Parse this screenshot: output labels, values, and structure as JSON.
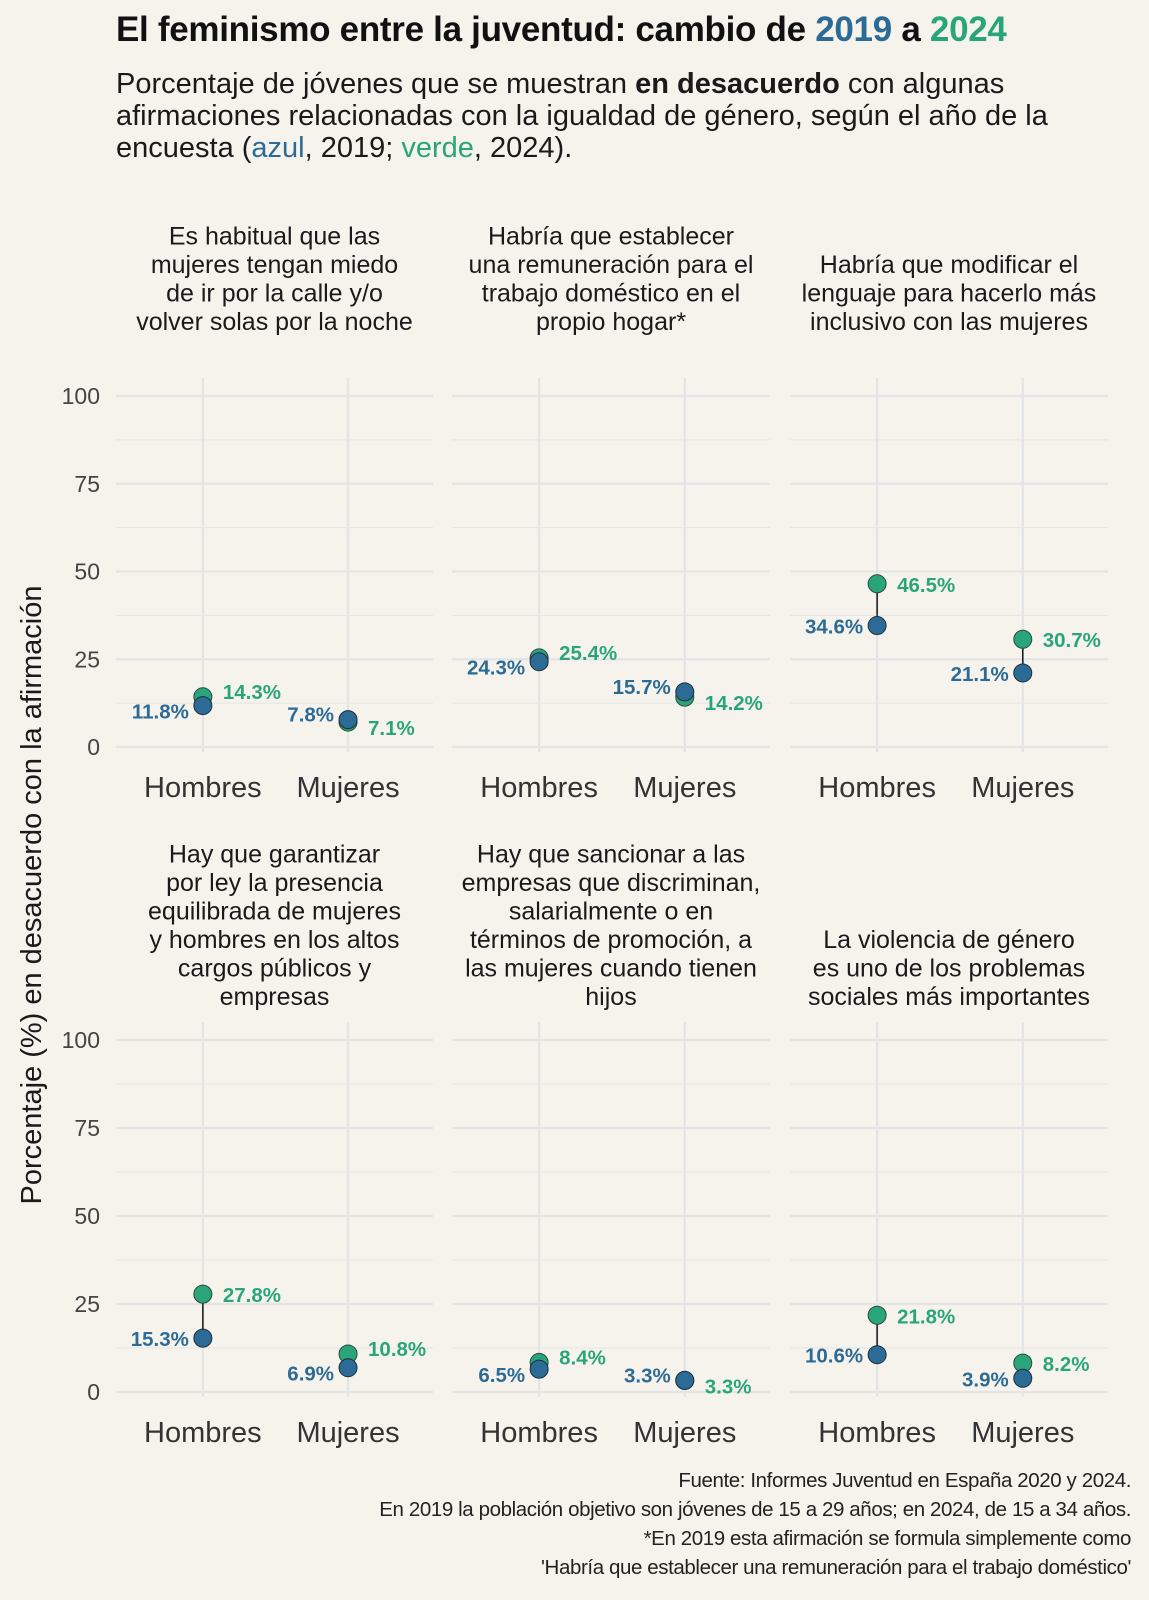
{
  "title": {
    "prefix": "El feminismo entre la juventud: cambio de ",
    "year_2019": "2019",
    "connector": " a ",
    "year_2024": "2024"
  },
  "subtitle": {
    "part1": "Porcentaje de jóvenes que se muestran ",
    "emphasis": "en desacuerdo",
    "part2": " con algunas afirmaciones relacionadas con la igualdad de género, según el año de la encuesta (",
    "blue_word": "azul",
    "part3": ", 2019; ",
    "green_word": "verde",
    "part4": ", 2024)."
  },
  "caption": [
    "Fuente: Informes Juventud en España 2020 y 2024.",
    "En 2019 la población objetivo son jóvenes de 15 a 29 años; en 2024, de 15 a 34 años.",
    "*En 2019 esta afirmación se formula simplemente como",
    "'Habría que establecer una remuneración para el trabajo doméstico'"
  ],
  "colors": {
    "year_2019": "#2c6b96",
    "year_2024": "#2aa57a",
    "background": "#f6f3ed",
    "grid": "#e4e4e4"
  },
  "chart_data": {
    "type": "scatter",
    "subtype": "dumbbell small multiples",
    "ylabel": "Porcentaje (%) en desacuerdo con la afirmación",
    "ylim": [
      0,
      100
    ],
    "yticks": [
      0,
      25,
      50,
      75,
      100
    ],
    "categories": [
      "Hombres",
      "Mujeres"
    ],
    "grid": true,
    "panels": [
      {
        "label": "Es habitual que las mujeres tengan miedo de ir por la calle y/o volver solas por la noche",
        "label_lines": [
          "Es habitual que las",
          "mujeres tengan miedo",
          "de ir por la calle y/o",
          "volver solas por la noche"
        ],
        "series": [
          {
            "name": "2019",
            "values": [
              11.8,
              7.8
            ],
            "labels": [
              "11.8%",
              "7.8%"
            ]
          },
          {
            "name": "2024",
            "values": [
              14.3,
              7.1
            ],
            "labels": [
              "14.3%",
              "7.1%"
            ]
          }
        ]
      },
      {
        "label": "Habría que establecer una remuneración para el trabajo doméstico en el propio hogar*",
        "label_lines": [
          "Habría que establecer",
          "una remuneración para el",
          "trabajo doméstico en el",
          "propio hogar*"
        ],
        "series": [
          {
            "name": "2019",
            "values": [
              24.3,
              15.7
            ],
            "labels": [
              "24.3%",
              "15.7%"
            ]
          },
          {
            "name": "2024",
            "values": [
              25.4,
              14.2
            ],
            "labels": [
              "25.4%",
              "14.2%"
            ]
          }
        ]
      },
      {
        "label": "Habría que modificar el lenguaje para hacerlo más inclusivo con las mujeres",
        "label_lines": [
          "Habría que modificar el",
          "lenguaje para hacerlo más",
          "inclusivo con las mujeres"
        ],
        "series": [
          {
            "name": "2019",
            "values": [
              34.6,
              21.1
            ],
            "labels": [
              "34.6%",
              "21.1%"
            ]
          },
          {
            "name": "2024",
            "values": [
              46.5,
              30.7
            ],
            "labels": [
              "46.5%",
              "30.7%"
            ]
          }
        ]
      },
      {
        "label": "Hay que garantizar por ley la presencia equilibrada de mujeres y hombres en los altos cargos públicos y empresas",
        "label_lines": [
          "Hay que garantizar",
          "por ley la presencia",
          "equilibrada de mujeres",
          "y hombres en los altos",
          "cargos públicos y",
          "empresas"
        ],
        "series": [
          {
            "name": "2019",
            "values": [
              15.3,
              6.9
            ],
            "labels": [
              "15.3%",
              "6.9%"
            ]
          },
          {
            "name": "2024",
            "values": [
              27.8,
              10.8
            ],
            "labels": [
              "27.8%",
              "10.8%"
            ]
          }
        ]
      },
      {
        "label": "Hay que sancionar a las empresas que discriminan, salarialmente o en términos de promoción, a las mujeres cuando tienen hijos",
        "label_lines": [
          "Hay que sancionar a las",
          "empresas que discriminan,",
          "salarialmente o en",
          "términos de promoción, a",
          "las mujeres cuando tienen",
          "hijos"
        ],
        "series": [
          {
            "name": "2019",
            "values": [
              6.5,
              3.3
            ],
            "labels": [
              "6.5%",
              "3.3%"
            ]
          },
          {
            "name": "2024",
            "values": [
              8.4,
              3.3
            ],
            "labels": [
              "8.4%",
              "3.3%"
            ]
          }
        ]
      },
      {
        "label": "La violencia de género es uno de los problemas sociales más importantes",
        "label_lines": [
          "La violencia de género",
          "es uno de los problemas",
          "sociales más importantes"
        ],
        "series": [
          {
            "name": "2019",
            "values": [
              10.6,
              3.9
            ],
            "labels": [
              "10.6%",
              "3.9%"
            ]
          },
          {
            "name": "2024",
            "values": [
              21.8,
              8.2
            ],
            "labels": [
              "21.8%",
              "8.2%"
            ]
          }
        ]
      }
    ]
  }
}
